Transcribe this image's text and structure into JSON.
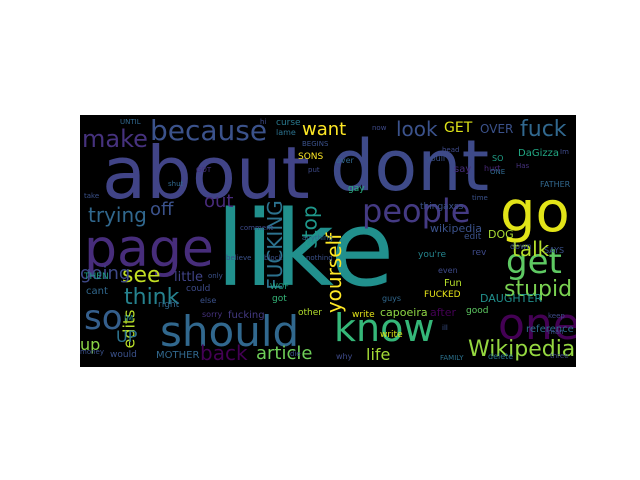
{
  "words": [
    {
      "text": "about",
      "color": "#414487"
    },
    {
      "text": "dont",
      "color": "#3e4a89"
    },
    {
      "text": "like",
      "color": "#21908d"
    },
    {
      "text": "page",
      "color": "#472d7b"
    },
    {
      "text": "go",
      "color": "#e2e418"
    },
    {
      "text": "people",
      "color": "#443a83"
    },
    {
      "text": "should",
      "color": "#31688e"
    },
    {
      "text": "know",
      "color": "#35b779"
    },
    {
      "text": "one",
      "color": "#440154"
    },
    {
      "text": "because",
      "color": "#3b528b"
    },
    {
      "text": "make",
      "color": "#46327e"
    },
    {
      "text": "get",
      "color": "#5ec962"
    },
    {
      "text": "so",
      "color": "#355f8d"
    },
    {
      "text": "fuck",
      "color": "#31688e"
    },
    {
      "text": "look",
      "color": "#3b528b"
    },
    {
      "text": "want",
      "color": "#fde725"
    },
    {
      "text": "talk",
      "color": "#b5de2b"
    },
    {
      "text": "Wikipedia",
      "color": "#95d840"
    },
    {
      "text": "stupid",
      "color": "#7ad151"
    },
    {
      "text": "article",
      "color": "#6ece58"
    },
    {
      "text": "back",
      "color": "#440154"
    },
    {
      "text": "think",
      "color": "#26828e"
    },
    {
      "text": "trying",
      "color": "#31688e"
    },
    {
      "text": "see",
      "color": "#c2df23"
    },
    {
      "text": "off",
      "color": "#3b528b"
    },
    {
      "text": "out",
      "color": "#472a7a"
    },
    {
      "text": "going",
      "color": "#3e4989"
    },
    {
      "text": "yourself",
      "color": "#fde725"
    },
    {
      "text": "stop",
      "color": "#1f988b"
    },
    {
      "text": "FUCKING",
      "color": "#2c728e"
    },
    {
      "text": "edits",
      "color": "#b8de29"
    },
    {
      "text": "UP",
      "color": "#2c728e"
    },
    {
      "text": "up",
      "color": "#8bd646"
    },
    {
      "text": "life",
      "color": "#a5db36"
    },
    {
      "text": "GET",
      "color": "#dde318"
    },
    {
      "text": "OVER",
      "color": "#3b528b"
    },
    {
      "text": "DaGizza",
      "color": "#22a884"
    },
    {
      "text": "little",
      "color": "#404387"
    },
    {
      "text": "wikipedia",
      "color": "#3b528b"
    },
    {
      "text": "DOG",
      "color": "#a8db34"
    },
    {
      "text": "MOTHER",
      "color": "#31688e"
    },
    {
      "text": "DAUGHTER",
      "color": "#21908d"
    },
    {
      "text": "capoeira",
      "color": "#8fd744"
    },
    {
      "text": "after",
      "color": "#440154"
    },
    {
      "text": "write",
      "color": "#e5e419"
    },
    {
      "text": "FUCKED",
      "color": "#e7e419"
    },
    {
      "text": "fucking",
      "color": "#443a83"
    },
    {
      "text": "other",
      "color": "#b2dd2d"
    },
    {
      "text": "reference",
      "color": "#2e6e8e"
    },
    {
      "text": "SAYS",
      "color": "#3b528b"
    },
    {
      "text": "FATHER",
      "color": "#31688e"
    },
    {
      "text": "FAMILY",
      "color": "#2c728e"
    },
    {
      "text": "delete",
      "color": "#2c728e"
    },
    {
      "text": "gay",
      "color": "#29af7f"
    },
    {
      "text": "SONS",
      "color": "#fde725"
    },
    {
      "text": "curse",
      "color": "#29798e"
    },
    {
      "text": "lame",
      "color": "#2c728e"
    },
    {
      "text": "BEGINS",
      "color": "#3b528b"
    },
    {
      "text": "write",
      "color": "#d8e219"
    },
    {
      "text": "good",
      "color": "#5ec962"
    },
    {
      "text": "Fun",
      "color": "#b5de2b"
    },
    {
      "text": "say",
      "color": "#472d7b"
    },
    {
      "text": "hurt",
      "color": "#482878"
    },
    {
      "text": "even",
      "color": "#3e4a89"
    },
    {
      "text": "you're",
      "color": "#25858e"
    },
    {
      "text": "edit",
      "color": "#3b528b"
    },
    {
      "text": "down",
      "color": "#3b528b"
    },
    {
      "text": "rev",
      "color": "#3e4a89"
    },
    {
      "text": "thingaxss",
      "color": "#3b528b"
    },
    {
      "text": "cant",
      "color": "#31688e"
    },
    {
      "text": "THEN",
      "color": "#1f9e89"
    },
    {
      "text": "could",
      "color": "#3e4a89"
    },
    {
      "text": "only",
      "color": "#3b528b"
    },
    {
      "text": "right",
      "color": "#31688e"
    },
    {
      "text": "IM",
      "color": "#24868e"
    },
    {
      "text": "would",
      "color": "#3b528b"
    },
    {
      "text": "why",
      "color": "#3e4a89"
    },
    {
      "text": "die",
      "color": "#3b528b"
    },
    {
      "text": "got",
      "color": "#35b779"
    },
    {
      "text": "sorry",
      "color": "#46327e"
    },
    {
      "text": "else",
      "color": "#3b528b"
    },
    {
      "text": "WOF",
      "color": "#22a884"
    },
    {
      "text": "guys",
      "color": "#31688e"
    },
    {
      "text": "SO",
      "color": "#1fa188"
    },
    {
      "text": "ONE",
      "color": "#31688e"
    },
    {
      "text": "head",
      "color": "#3e4a89"
    },
    {
      "text": "now",
      "color": "#3e4a89"
    },
    {
      "text": "over",
      "color": "#31688e"
    },
    {
      "text": "put",
      "color": "#3e4a89"
    },
    {
      "text": "UNTIL",
      "color": "#31688e"
    },
    {
      "text": "shut",
      "color": "#31688e"
    },
    {
      "text": "take",
      "color": "#3b528b"
    },
    {
      "text": "GOT",
      "color": "#46327e"
    },
    {
      "text": "Im",
      "color": "#3e4a89"
    },
    {
      "text": "Has",
      "color": "#46327e"
    },
    {
      "text": "time",
      "color": "#3b528b"
    },
    {
      "text": "man",
      "color": "#3e4a89"
    },
    {
      "text": "keep",
      "color": "#3e4a89"
    },
    {
      "text": "three",
      "color": "#3e4a89"
    },
    {
      "text": "nothing",
      "color": "#3b528b"
    },
    {
      "text": "anything",
      "color": "#31688e"
    },
    {
      "text": "comment",
      "color": "#3e4a89"
    },
    {
      "text": "believe",
      "color": "#3b528b"
    },
    {
      "text": "money",
      "color": "#3b528b"
    },
    {
      "text": "ill",
      "color": "#3b528b"
    },
    {
      "text": "hi",
      "color": "#3e4a89"
    },
    {
      "text": "block",
      "color": "#3b528b"
    },
    {
      "text": "youll",
      "color": "#3b528b"
    }
  ]
}
